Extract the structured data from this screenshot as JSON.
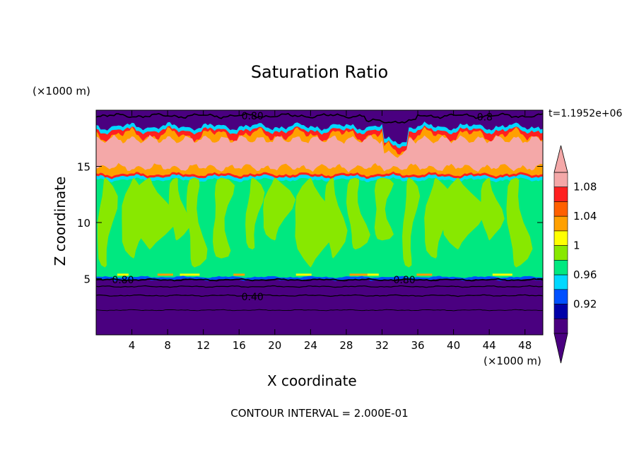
{
  "chart_data": {
    "type": "heatmap",
    "title": "Saturation Ratio",
    "xlabel": "X coordinate",
    "ylabel": "Z coordinate",
    "x_unit": "(×1000 m)",
    "y_unit": "(×1000 m)",
    "xlim": [
      0,
      50
    ],
    "ylim": [
      0,
      20
    ],
    "x_ticks": [
      4,
      8,
      12,
      16,
      20,
      24,
      28,
      32,
      36,
      40,
      44,
      48
    ],
    "y_ticks": [
      5,
      10,
      15
    ],
    "time_label": "t=1.1952e+06",
    "footer": "CONTOUR INTERVAL = 2.000E-01",
    "colorbar": {
      "levels": [
        0.92,
        0.96,
        1,
        1.04,
        1.08
      ],
      "tick_labels": [
        "0.92",
        "0.96",
        "1",
        "1.04",
        "1.08"
      ],
      "colors": [
        "#4a0080",
        "#0000a8",
        "#0050ff",
        "#00d8ff",
        "#00e880",
        "#88e800",
        "#ffff00",
        "#ffa000",
        "#ff6000",
        "#ff2020",
        "#f4a8a8"
      ],
      "extend": "both"
    },
    "layers": [
      {
        "z": [
          0,
          5.2
        ],
        "value": "<0.92"
      },
      {
        "z": [
          5.2,
          14.0
        ],
        "value": "0.98–1.02"
      },
      {
        "z": [
          14.0,
          18.5
        ],
        "value": ">1.08"
      },
      {
        "z": [
          18.5,
          20
        ],
        "value": "<0.92"
      }
    ],
    "contour_labels": [
      {
        "text": "0.80",
        "x": 17.5,
        "z": 19.5
      },
      {
        "text": "0.8",
        "x": 43.5,
        "z": 19.4
      },
      {
        "text": "0.80",
        "x": 3.0,
        "z": 4.9
      },
      {
        "text": "0.80",
        "x": 34.5,
        "z": 4.9
      },
      {
        "text": "0.40",
        "x": 17.5,
        "z": 3.4
      }
    ]
  },
  "colors": {
    "dry": "#4a0080",
    "deep_blue": "#0000a8",
    "blue": "#0050ff",
    "cyan": "#00d8ff",
    "teal": "#00e880",
    "green": "#88e800",
    "yellow": "#ffff00",
    "orange": "#ffa000",
    "red": "#ff2020",
    "pink": "#f4a8a8"
  }
}
